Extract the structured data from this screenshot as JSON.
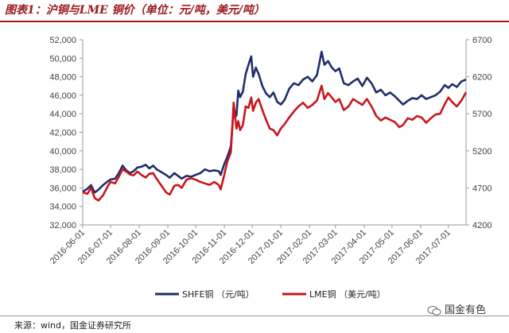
{
  "title": "图表1：沪铜与LME 铜价（单位：元/吨，美元/吨）",
  "source": "来源：wind，国金证券研究所",
  "watermark": "国金有色",
  "chart_data": {
    "type": "line",
    "title": "",
    "xlabel": "",
    "ylabel_left": "",
    "ylabel_right": "",
    "x_range": [
      "2016-06-01",
      "2017-07-20"
    ],
    "y_left": {
      "min": 32000,
      "max": 52000,
      "step": 2000
    },
    "y_right": {
      "min": 4200,
      "max": 6700,
      "step": 500
    },
    "x_ticks": [
      "2016-06-01",
      "2016-07-01",
      "2016-08-01",
      "2016-09-01",
      "2016-10-01",
      "2016-11-01",
      "2016-12-01",
      "2017-01-01",
      "2017-02-01",
      "2017-03-01",
      "2017-04-01",
      "2017-05-01",
      "2017-06-01",
      "2017-07-01"
    ],
    "y_left_ticks": [
      "32,000",
      "34,000",
      "36,000",
      "38,000",
      "40,000",
      "42,000",
      "44,000",
      "46,000",
      "48,000",
      "50,000",
      "52,000"
    ],
    "y_right_ticks": [
      "4200",
      "4700",
      "5200",
      "5700",
      "6200",
      "6700"
    ],
    "grid": false,
    "legend_position": "bottom",
    "series": [
      {
        "name": "SHFE铜 （元/吨）",
        "axis": "left",
        "color": "#1f2d6b",
        "points": [
          [
            "2016-06-01",
            35600
          ],
          [
            "2016-06-06",
            35900
          ],
          [
            "2016-06-10",
            36300
          ],
          [
            "2016-06-14",
            35500
          ],
          [
            "2016-06-18",
            35800
          ],
          [
            "2016-06-23",
            36300
          ],
          [
            "2016-06-28",
            36700
          ],
          [
            "2016-07-01",
            36900
          ],
          [
            "2016-07-06",
            37000
          ],
          [
            "2016-07-10",
            37600
          ],
          [
            "2016-07-14",
            38400
          ],
          [
            "2016-07-18",
            37900
          ],
          [
            "2016-07-22",
            37600
          ],
          [
            "2016-07-26",
            37800
          ],
          [
            "2016-07-30",
            38200
          ],
          [
            "2016-08-04",
            38300
          ],
          [
            "2016-08-08",
            38500
          ],
          [
            "2016-08-12",
            38100
          ],
          [
            "2016-08-16",
            38400
          ],
          [
            "2016-08-20",
            38000
          ],
          [
            "2016-08-25",
            37700
          ],
          [
            "2016-08-30",
            37400
          ],
          [
            "2016-09-03",
            37100
          ],
          [
            "2016-09-08",
            37600
          ],
          [
            "2016-09-12",
            37300
          ],
          [
            "2016-09-16",
            37000
          ],
          [
            "2016-09-21",
            37300
          ],
          [
            "2016-09-26",
            37200
          ],
          [
            "2016-10-01",
            37400
          ],
          [
            "2016-10-06",
            37600
          ],
          [
            "2016-10-11",
            38000
          ],
          [
            "2016-10-16",
            37800
          ],
          [
            "2016-10-21",
            37900
          ],
          [
            "2016-10-26",
            37800
          ],
          [
            "2016-10-28",
            37400
          ],
          [
            "2016-11-01",
            38600
          ],
          [
            "2016-11-04",
            39300
          ],
          [
            "2016-11-08",
            40500
          ],
          [
            "2016-11-11",
            44500
          ],
          [
            "2016-11-14",
            43800
          ],
          [
            "2016-11-16",
            46500
          ],
          [
            "2016-11-18",
            45800
          ],
          [
            "2016-11-21",
            46400
          ],
          [
            "2016-11-24",
            48300
          ],
          [
            "2016-11-27",
            49300
          ],
          [
            "2016-11-30",
            50200
          ],
          [
            "2016-12-02",
            48000
          ],
          [
            "2016-12-05",
            49000
          ],
          [
            "2016-12-08",
            48300
          ],
          [
            "2016-12-12",
            47000
          ],
          [
            "2016-12-16",
            46200
          ],
          [
            "2016-12-20",
            45800
          ],
          [
            "2016-12-24",
            46300
          ],
          [
            "2016-12-28",
            45300
          ],
          [
            "2017-01-01",
            45000
          ],
          [
            "2017-01-05",
            45500
          ],
          [
            "2017-01-10",
            46700
          ],
          [
            "2017-01-15",
            47300
          ],
          [
            "2017-01-20",
            47100
          ],
          [
            "2017-01-25",
            47700
          ],
          [
            "2017-01-30",
            48000
          ],
          [
            "2017-02-04",
            47500
          ],
          [
            "2017-02-09",
            48200
          ],
          [
            "2017-02-14",
            50700
          ],
          [
            "2017-02-17",
            49300
          ],
          [
            "2017-02-21",
            49700
          ],
          [
            "2017-02-25",
            49000
          ],
          [
            "2017-03-01",
            48600
          ],
          [
            "2017-03-05",
            48900
          ],
          [
            "2017-03-10",
            47300
          ],
          [
            "2017-03-15",
            47100
          ],
          [
            "2017-03-20",
            47500
          ],
          [
            "2017-03-25",
            47800
          ],
          [
            "2017-03-30",
            47000
          ],
          [
            "2017-04-04",
            47900
          ],
          [
            "2017-04-09",
            47300
          ],
          [
            "2017-04-14",
            46300
          ],
          [
            "2017-04-19",
            46600
          ],
          [
            "2017-04-24",
            46000
          ],
          [
            "2017-04-29",
            46300
          ],
          [
            "2017-05-04",
            45900
          ],
          [
            "2017-05-09",
            45400
          ],
          [
            "2017-05-13",
            45000
          ],
          [
            "2017-05-18",
            45400
          ],
          [
            "2017-05-23",
            45700
          ],
          [
            "2017-05-28",
            45600
          ],
          [
            "2017-06-02",
            46000
          ],
          [
            "2017-06-07",
            45600
          ],
          [
            "2017-06-12",
            45800
          ],
          [
            "2017-06-17",
            46000
          ],
          [
            "2017-06-22",
            46400
          ],
          [
            "2017-06-27",
            47100
          ],
          [
            "2017-07-01",
            46800
          ],
          [
            "2017-07-05",
            47200
          ],
          [
            "2017-07-10",
            46900
          ],
          [
            "2017-07-15",
            47500
          ],
          [
            "2017-07-20",
            47700
          ]
        ]
      },
      {
        "name": "LME铜 （美元/吨）",
        "axis": "right",
        "color": "#c8161d",
        "points": [
          [
            "2016-06-01",
            4640
          ],
          [
            "2016-06-06",
            4620
          ],
          [
            "2016-06-10",
            4700
          ],
          [
            "2016-06-14",
            4560
          ],
          [
            "2016-06-18",
            4530
          ],
          [
            "2016-06-23",
            4600
          ],
          [
            "2016-06-28",
            4720
          ],
          [
            "2016-07-01",
            4780
          ],
          [
            "2016-07-06",
            4760
          ],
          [
            "2016-07-10",
            4850
          ],
          [
            "2016-07-14",
            4950
          ],
          [
            "2016-07-18",
            4920
          ],
          [
            "2016-07-22",
            4880
          ],
          [
            "2016-07-26",
            4870
          ],
          [
            "2016-07-30",
            4920
          ],
          [
            "2016-08-04",
            4870
          ],
          [
            "2016-08-08",
            4840
          ],
          [
            "2016-08-12",
            4890
          ],
          [
            "2016-08-16",
            4900
          ],
          [
            "2016-08-20",
            4820
          ],
          [
            "2016-08-25",
            4730
          ],
          [
            "2016-08-30",
            4640
          ],
          [
            "2016-09-03",
            4610
          ],
          [
            "2016-09-08",
            4730
          ],
          [
            "2016-09-12",
            4740
          ],
          [
            "2016-09-16",
            4700
          ],
          [
            "2016-09-21",
            4810
          ],
          [
            "2016-09-26",
            4830
          ],
          [
            "2016-10-01",
            4810
          ],
          [
            "2016-10-06",
            4780
          ],
          [
            "2016-10-11",
            4760
          ],
          [
            "2016-10-16",
            4740
          ],
          [
            "2016-10-21",
            4780
          ],
          [
            "2016-10-26",
            4740
          ],
          [
            "2016-10-28",
            4680
          ],
          [
            "2016-11-01",
            4880
          ],
          [
            "2016-11-04",
            5050
          ],
          [
            "2016-11-08",
            5180
          ],
          [
            "2016-11-11",
            5850
          ],
          [
            "2016-11-14",
            5500
          ],
          [
            "2016-11-16",
            5600
          ],
          [
            "2016-11-18",
            5480
          ],
          [
            "2016-11-21",
            5550
          ],
          [
            "2016-11-24",
            5800
          ],
          [
            "2016-11-27",
            5780
          ],
          [
            "2016-11-30",
            5920
          ],
          [
            "2016-12-02",
            5740
          ],
          [
            "2016-12-05",
            5850
          ],
          [
            "2016-12-08",
            5900
          ],
          [
            "2016-12-12",
            5750
          ],
          [
            "2016-12-16",
            5620
          ],
          [
            "2016-12-20",
            5500
          ],
          [
            "2016-12-24",
            5480
          ],
          [
            "2016-12-28",
            5410
          ],
          [
            "2017-01-01",
            5500
          ],
          [
            "2017-01-05",
            5560
          ],
          [
            "2017-01-10",
            5650
          ],
          [
            "2017-01-15",
            5730
          ],
          [
            "2017-01-20",
            5800
          ],
          [
            "2017-01-25",
            5850
          ],
          [
            "2017-01-30",
            5780
          ],
          [
            "2017-02-04",
            5820
          ],
          [
            "2017-02-09",
            5880
          ],
          [
            "2017-02-14",
            6080
          ],
          [
            "2017-02-17",
            5900
          ],
          [
            "2017-02-21",
            5980
          ],
          [
            "2017-02-25",
            5920
          ],
          [
            "2017-03-01",
            5860
          ],
          [
            "2017-03-05",
            5900
          ],
          [
            "2017-03-10",
            5750
          ],
          [
            "2017-03-15",
            5800
          ],
          [
            "2017-03-20",
            5900
          ],
          [
            "2017-03-25",
            5860
          ],
          [
            "2017-03-30",
            5820
          ],
          [
            "2017-04-04",
            5900
          ],
          [
            "2017-04-09",
            5800
          ],
          [
            "2017-04-14",
            5670
          ],
          [
            "2017-04-19",
            5610
          ],
          [
            "2017-04-24",
            5650
          ],
          [
            "2017-04-29",
            5620
          ],
          [
            "2017-05-04",
            5590
          ],
          [
            "2017-05-09",
            5520
          ],
          [
            "2017-05-13",
            5550
          ],
          [
            "2017-05-18",
            5640
          ],
          [
            "2017-05-23",
            5620
          ],
          [
            "2017-05-28",
            5670
          ],
          [
            "2017-06-02",
            5650
          ],
          [
            "2017-06-07",
            5580
          ],
          [
            "2017-06-12",
            5640
          ],
          [
            "2017-06-17",
            5690
          ],
          [
            "2017-06-22",
            5700
          ],
          [
            "2017-06-27",
            5830
          ],
          [
            "2017-07-01",
            5920
          ],
          [
            "2017-07-05",
            5860
          ],
          [
            "2017-07-10",
            5800
          ],
          [
            "2017-07-15",
            5880
          ],
          [
            "2017-07-20",
            5990
          ]
        ]
      }
    ]
  }
}
